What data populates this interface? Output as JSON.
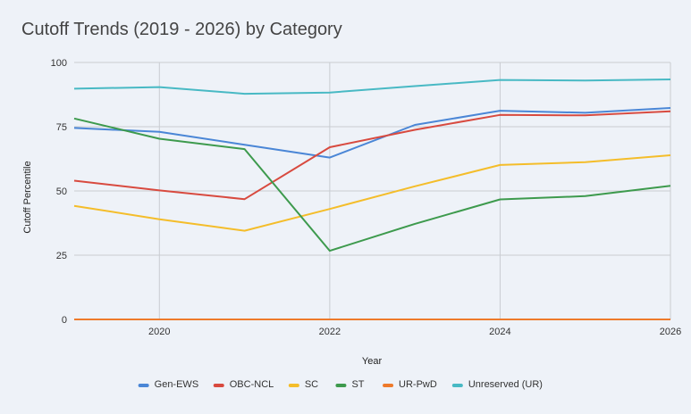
{
  "chart_data": {
    "type": "line",
    "title": "Cutoff Trends (2019 - 2026) by Category",
    "xlabel": "Year",
    "ylabel": "Cutoff Percentile",
    "x": [
      2019,
      2020,
      2021,
      2022,
      2023,
      2024,
      2025,
      2026
    ],
    "xlim": [
      2019,
      2026
    ],
    "ylim": [
      0,
      100
    ],
    "x_ticks": [
      "2020",
      "2022",
      "2024",
      "2026"
    ],
    "y_ticks": [
      "0",
      "25",
      "50",
      "75",
      "100"
    ],
    "legend_position": "bottom",
    "grid": true,
    "series": [
      {
        "name": "Gen-EWS",
        "color": "#4a86d6",
        "values": [
          74.5,
          73,
          68,
          63,
          75.7,
          81.2,
          80.4,
          82.3
        ]
      },
      {
        "name": "OBC-NCL",
        "color": "#d84a3f",
        "values": [
          54,
          50.2,
          46.8,
          67,
          73.8,
          79.6,
          79.4,
          81
        ]
      },
      {
        "name": "SC",
        "color": "#f4bd2a",
        "values": [
          44.2,
          39,
          34.5,
          43,
          51.8,
          60.1,
          61.2,
          63.9
        ]
      },
      {
        "name": "ST",
        "color": "#3d9a4d",
        "values": [
          78.2,
          70.3,
          66.3,
          26.7,
          37.2,
          46.7,
          48,
          52
        ]
      },
      {
        "name": "UR-PwD",
        "color": "#ee7a2b",
        "values": [
          0,
          0,
          0,
          0,
          0,
          0,
          0,
          0
        ]
      },
      {
        "name": "Unreserved (UR)",
        "color": "#48b9c4",
        "values": [
          89.8,
          90.4,
          87.8,
          88.3,
          90.8,
          93.2,
          93,
          93.4
        ]
      }
    ]
  }
}
